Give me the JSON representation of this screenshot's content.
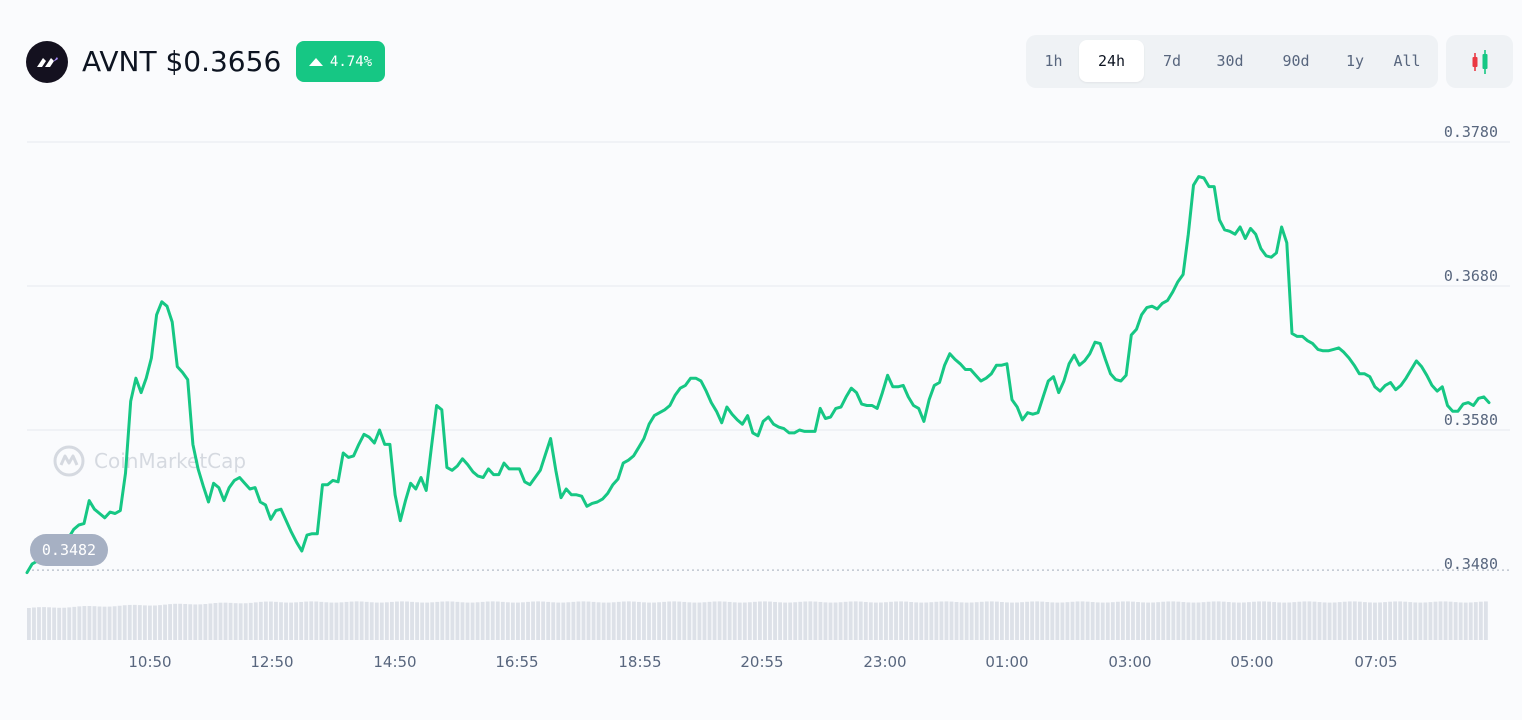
{
  "header": {
    "token_title": "AVNT $0.3656",
    "change_pct": "4.74%",
    "logo_icon": "avnt-logo-icon",
    "accent_color": "#16c784"
  },
  "range_tabs": {
    "items": [
      {
        "label": "1h"
      },
      {
        "label": "24h"
      },
      {
        "label": "7d"
      },
      {
        "label": "30d"
      },
      {
        "label": "90d"
      },
      {
        "label": "1y"
      },
      {
        "label": "All"
      }
    ],
    "selected": "24h"
  },
  "chart_toggle_icon": "candlestick-icon",
  "watermark": "CoinMarketCap",
  "chart_data": {
    "type": "line",
    "title": "",
    "xlabel": "",
    "ylabel": "",
    "y_ticks": [
      "0.3780",
      "0.3680",
      "0.3580",
      "0.3480"
    ],
    "ylim": [
      0.3474,
      0.3788
    ],
    "x_ticks": [
      "10:50",
      "12:50",
      "14:50",
      "16:55",
      "18:55",
      "20:55",
      "23:00",
      "01:00",
      "03:00",
      "05:00",
      "07:05"
    ],
    "reference_value": 0.3482,
    "reference_label": "0.3482",
    "line_color": "#16c784",
    "grid": true,
    "series": [
      {
        "values": [
          0.3481,
          0.3487,
          0.3489,
          0.3492,
          0.3495,
          0.3497,
          0.3502,
          0.3504,
          0.3505,
          0.3511,
          0.3514,
          0.3515,
          0.3531,
          0.3525,
          0.3522,
          0.3519,
          0.3523,
          0.3522,
          0.3524,
          0.355,
          0.36,
          0.3616,
          0.3606,
          0.3616,
          0.363,
          0.366,
          0.3669,
          0.3666,
          0.3655,
          0.3624,
          0.362,
          0.3615,
          0.357,
          0.3553,
          0.3541,
          0.353,
          0.3543,
          0.354,
          0.3531,
          0.354,
          0.3545,
          0.3547,
          0.3543,
          0.3539,
          0.354,
          0.353,
          0.3528,
          0.3518,
          0.3524,
          0.3525,
          0.3517,
          0.3509,
          0.3502,
          0.3496,
          0.3507,
          0.3508,
          0.3508,
          0.3542,
          0.3542,
          0.3545,
          0.3544,
          0.3564,
          0.3561,
          0.3562,
          0.357,
          0.3577,
          0.3575,
          0.3571,
          0.358,
          0.357,
          0.357,
          0.3535,
          0.3517,
          0.3531,
          0.3543,
          0.3539,
          0.3547,
          0.3538,
          0.3568,
          0.3597,
          0.3594,
          0.3554,
          0.3552,
          0.3555,
          0.356,
          0.3556,
          0.3551,
          0.3548,
          0.3547,
          0.3553,
          0.3549,
          0.3549,
          0.3557,
          0.3553,
          0.3553,
          0.3553,
          0.3544,
          0.3542,
          0.3547,
          0.3552,
          0.3563,
          0.3574,
          0.3552,
          0.3533,
          0.3539,
          0.3535,
          0.3535,
          0.3534,
          0.3527,
          0.3529,
          0.353,
          0.3532,
          0.3536,
          0.3542,
          0.3546,
          0.3557,
          0.3559,
          0.3562,
          0.3568,
          0.3574,
          0.3584,
          0.359,
          0.3592,
          0.3594,
          0.3597,
          0.3604,
          0.3609,
          0.3611,
          0.3616,
          0.3616,
          0.3614,
          0.3607,
          0.3599,
          0.3593,
          0.3585,
          0.3596,
          0.3591,
          0.3587,
          0.3584,
          0.359,
          0.3578,
          0.3576,
          0.3586,
          0.3589,
          0.3584,
          0.3582,
          0.3581,
          0.3578,
          0.3578,
          0.358,
          0.3579,
          0.3579,
          0.3579,
          0.3595,
          0.3588,
          0.3589,
          0.3595,
          0.3596,
          0.3603,
          0.3609,
          0.3606,
          0.3598,
          0.3597,
          0.3597,
          0.3595,
          0.3606,
          0.3618,
          0.361,
          0.361,
          0.3611,
          0.3603,
          0.3597,
          0.3595,
          0.3586,
          0.3601,
          0.3611,
          0.3613,
          0.3625,
          0.3633,
          0.3629,
          0.3626,
          0.3622,
          0.3622,
          0.3618,
          0.3614,
          0.3616,
          0.3619,
          0.3625,
          0.3625,
          0.3626,
          0.3601,
          0.3596,
          0.3587,
          0.3592,
          0.3591,
          0.3592,
          0.3603,
          0.3614,
          0.3617,
          0.3606,
          0.3614,
          0.3626,
          0.3632,
          0.3625,
          0.3628,
          0.3633,
          0.3641,
          0.364,
          0.3629,
          0.3619,
          0.3615,
          0.3614,
          0.3618,
          0.3646,
          0.365,
          0.366,
          0.3665,
          0.3666,
          0.3664,
          0.3668,
          0.367,
          0.3676,
          0.3683,
          0.3688,
          0.3716,
          0.375,
          0.3756,
          0.3755,
          0.3749,
          0.3749,
          0.3726,
          0.3719,
          0.3718,
          0.3716,
          0.3721,
          0.3713,
          0.372,
          0.3716,
          0.3706,
          0.3701,
          0.37,
          0.3703,
          0.3721,
          0.371,
          0.3647,
          0.3645,
          0.3645,
          0.3642,
          0.364,
          0.3636,
          0.3635,
          0.3635,
          0.3636,
          0.3637,
          0.3634,
          0.363,
          0.3625,
          0.3619,
          0.3619,
          0.3617,
          0.361,
          0.3607,
          0.3611,
          0.3613,
          0.3608,
          0.3611,
          0.3616,
          0.3622,
          0.3628,
          0.3624,
          0.3618,
          0.3611,
          0.3607,
          0.361,
          0.3597,
          0.3593,
          0.3593,
          0.3598,
          0.3599,
          0.3597,
          0.3602,
          0.3603,
          0.3599
        ]
      }
    ]
  }
}
